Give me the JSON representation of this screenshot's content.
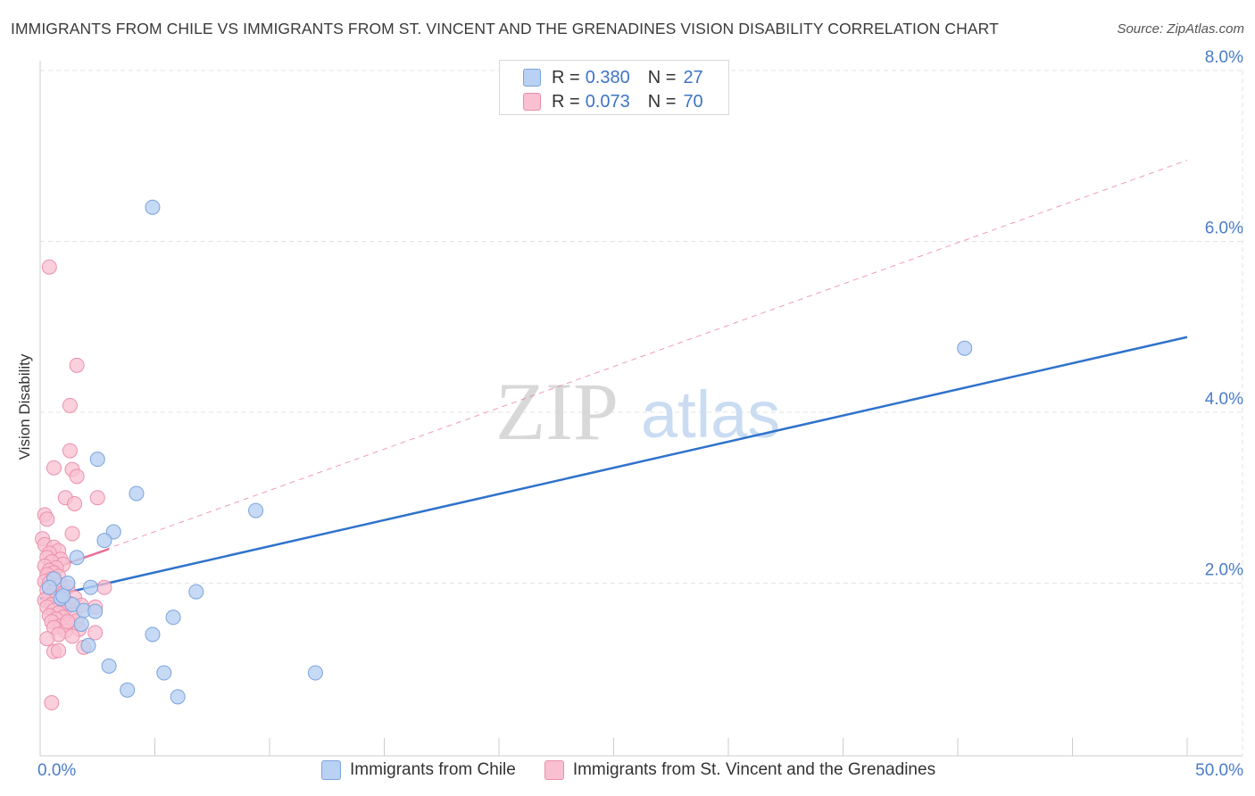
{
  "title": "IMMIGRANTS FROM CHILE VS IMMIGRANTS FROM ST. VINCENT AND THE GRENADINES VISION DISABILITY CORRELATION CHART",
  "source": "Source: ZipAtlas.com",
  "watermark": {
    "zip": "ZIP",
    "atlas": "atlas"
  },
  "colors": {
    "chile_fill": "#b9d1f2",
    "chile_stroke": "#7aa3dc",
    "chile_line": "#2f72cc",
    "svg_fill": "#f8c0d0",
    "svg_stroke": "#ec8fac",
    "svg_line": "#e8709a",
    "axis_text": "#4a7cc7",
    "grid": "#e3e3e3"
  },
  "legend": [
    {
      "r_label": "R =",
      "r_value": "0.380",
      "n_label": "N =",
      "n_value": "27"
    },
    {
      "r_label": "R =",
      "r_value": "0.073",
      "n_label": "N =",
      "n_value": "70"
    }
  ],
  "chart_data": {
    "type": "scatter",
    "title": "IMMIGRANTS FROM CHILE VS IMMIGRANTS FROM ST. VINCENT AND THE GRENADINES VISION DISABILITY CORRELATION CHART",
    "xlabel": "",
    "ylabel": "Vision Disability",
    "xlim": [
      0,
      50
    ],
    "ylim": [
      0,
      8.6
    ],
    "x_tick_labels": [
      "0.0%",
      "50.0%"
    ],
    "y_ticks": [
      2,
      4,
      6,
      8
    ],
    "y_tick_labels": [
      "2.0%",
      "4.0%",
      "6.0%",
      "8.0%"
    ],
    "grid": true,
    "legend_position": "top-center",
    "series": [
      {
        "name": "Immigrants from Chile",
        "points": [
          [
            4.9,
            6.4
          ],
          [
            40.3,
            4.75
          ],
          [
            2.5,
            3.45
          ],
          [
            4.2,
            3.05
          ],
          [
            9.4,
            2.85
          ],
          [
            3.2,
            2.6
          ],
          [
            2.8,
            2.5
          ],
          [
            1.6,
            2.3
          ],
          [
            0.6,
            2.05
          ],
          [
            1.2,
            2.0
          ],
          [
            2.2,
            1.95
          ],
          [
            6.8,
            1.9
          ],
          [
            0.9,
            1.82
          ],
          [
            1.4,
            1.75
          ],
          [
            1.9,
            1.68
          ],
          [
            2.4,
            1.67
          ],
          [
            5.8,
            1.6
          ],
          [
            1.8,
            1.52
          ],
          [
            4.9,
            1.4
          ],
          [
            2.1,
            1.27
          ],
          [
            3.0,
            1.03
          ],
          [
            5.4,
            0.95
          ],
          [
            12.0,
            0.95
          ],
          [
            3.8,
            0.75
          ],
          [
            6.0,
            0.67
          ],
          [
            0.4,
            1.95
          ],
          [
            1.0,
            1.85
          ]
        ],
        "trend": [
          [
            0.0,
            1.82
          ],
          [
            50.0,
            4.88
          ]
        ]
      },
      {
        "name": "Immigrants from St. Vincent and the Grenadines",
        "points": [
          [
            0.4,
            5.7
          ],
          [
            1.6,
            4.55
          ],
          [
            1.3,
            4.08
          ],
          [
            1.3,
            3.55
          ],
          [
            0.6,
            3.35
          ],
          [
            1.4,
            3.33
          ],
          [
            1.6,
            3.25
          ],
          [
            1.1,
            3.0
          ],
          [
            2.5,
            3.0
          ],
          [
            1.5,
            2.93
          ],
          [
            0.2,
            2.8
          ],
          [
            0.3,
            2.75
          ],
          [
            1.4,
            2.58
          ],
          [
            0.1,
            2.52
          ],
          [
            0.2,
            2.45
          ],
          [
            0.6,
            2.42
          ],
          [
            0.8,
            2.38
          ],
          [
            0.4,
            2.35
          ],
          [
            0.3,
            2.3
          ],
          [
            0.9,
            2.28
          ],
          [
            0.5,
            2.25
          ],
          [
            1.0,
            2.22
          ],
          [
            0.2,
            2.2
          ],
          [
            0.7,
            2.18
          ],
          [
            0.4,
            2.15
          ],
          [
            0.6,
            2.12
          ],
          [
            0.3,
            2.1
          ],
          [
            0.8,
            2.08
          ],
          [
            0.5,
            2.05
          ],
          [
            0.2,
            2.02
          ],
          [
            0.4,
            2.0
          ],
          [
            0.9,
            1.98
          ],
          [
            1.2,
            1.95
          ],
          [
            2.8,
            1.95
          ],
          [
            0.3,
            1.92
          ],
          [
            0.6,
            1.9
          ],
          [
            1.0,
            1.88
          ],
          [
            0.4,
            1.85
          ],
          [
            1.5,
            1.83
          ],
          [
            0.7,
            1.82
          ],
          [
            0.2,
            1.8
          ],
          [
            0.9,
            1.78
          ],
          [
            1.3,
            1.76
          ],
          [
            0.5,
            1.75
          ],
          [
            1.8,
            1.74
          ],
          [
            0.3,
            1.72
          ],
          [
            1.1,
            1.7
          ],
          [
            2.4,
            1.72
          ],
          [
            0.6,
            1.68
          ],
          [
            0.8,
            1.65
          ],
          [
            1.4,
            1.63
          ],
          [
            0.4,
            1.62
          ],
          [
            1.0,
            1.6
          ],
          [
            0.7,
            1.58
          ],
          [
            1.6,
            1.56
          ],
          [
            0.5,
            1.55
          ],
          [
            1.2,
            1.52
          ],
          [
            0.9,
            1.5
          ],
          [
            0.6,
            1.48
          ],
          [
            1.7,
            1.46
          ],
          [
            1.1,
            1.44
          ],
          [
            2.4,
            1.42
          ],
          [
            0.8,
            1.4
          ],
          [
            1.4,
            1.38
          ],
          [
            0.3,
            1.35
          ],
          [
            1.9,
            1.25
          ],
          [
            0.6,
            1.2
          ],
          [
            0.8,
            1.21
          ],
          [
            1.2,
            1.55
          ],
          [
            0.5,
            0.6
          ]
        ],
        "trend": [
          [
            0.0,
            2.12
          ],
          [
            3.0,
            2.4
          ]
        ],
        "trend_extended": [
          [
            0.0,
            2.12
          ],
          [
            50.0,
            6.95
          ]
        ]
      }
    ]
  },
  "bottom_legend": [
    {
      "label": "Immigrants from Chile"
    },
    {
      "label": "Immigrants from St. Vincent and the Grenadines"
    }
  ]
}
